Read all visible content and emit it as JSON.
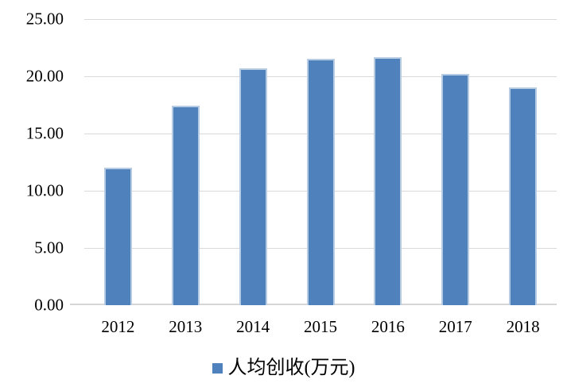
{
  "chart_data": {
    "type": "bar",
    "categories": [
      "2012",
      "2013",
      "2014",
      "2015",
      "2016",
      "2017",
      "2018"
    ],
    "series": [
      {
        "name": "人均创收(万元)",
        "values": [
          12.0,
          17.4,
          20.7,
          21.5,
          21.7,
          20.2,
          19.0
        ]
      }
    ],
    "title": "",
    "xlabel": "",
    "ylabel": "",
    "ylim": [
      0,
      25
    ],
    "ytick_values": [
      0,
      5,
      10,
      15,
      20,
      25
    ],
    "ytick_labels": [
      "0.00",
      "5.00",
      "10.00",
      "15.00",
      "20.00",
      "25.00"
    ],
    "grid": true,
    "legend_position": "bottom",
    "colors": {
      "bar_fill": "#4f81bd",
      "bar_border": "#b7cbe3",
      "gridline": "#d9d9d9",
      "axis_line": "#d6d6d6",
      "text": "#000000",
      "background": "#ffffff"
    },
    "legend": {
      "marker": "square-icon",
      "label": "人均创收(万元)"
    }
  }
}
